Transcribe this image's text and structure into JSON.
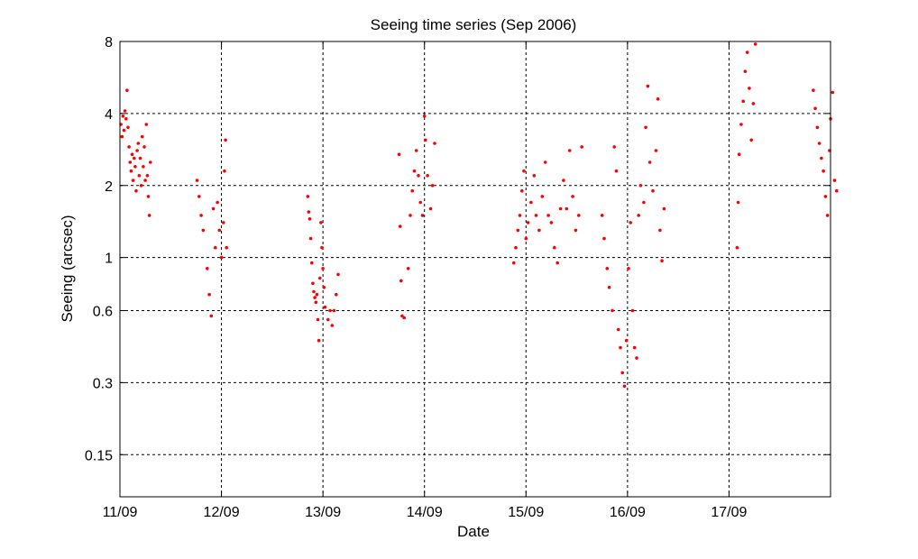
{
  "chart_data": {
    "type": "scatter",
    "title": "Seeing time series (Sep 2006)",
    "xlabel": "Date",
    "ylabel": "Seeing (arcsec)",
    "x_unit": "days in September 2006",
    "x_range": [
      11,
      18
    ],
    "ylim": [
      0.1,
      8
    ],
    "yscale": "log",
    "grid": true,
    "marker_color": "#ff0000",
    "x_ticks": [
      {
        "value": 11,
        "label": "11/09"
      },
      {
        "value": 12,
        "label": "12/09"
      },
      {
        "value": 13,
        "label": "13/09"
      },
      {
        "value": 14,
        "label": "14/09"
      },
      {
        "value": 15,
        "label": "15/09"
      },
      {
        "value": 16,
        "label": "16/09"
      },
      {
        "value": 17,
        "label": "17/09"
      }
    ],
    "y_ticks": [
      {
        "value": 0.15,
        "label": "0.15"
      },
      {
        "value": 0.3,
        "label": "0.3"
      },
      {
        "value": 0.6,
        "label": "0.6"
      },
      {
        "value": 1,
        "label": "1"
      },
      {
        "value": 2,
        "label": "2"
      },
      {
        "value": 4,
        "label": "4"
      },
      {
        "value": 8,
        "label": "8"
      }
    ],
    "series": [
      {
        "values": [
          [
            11.01,
            3.6
          ],
          [
            11.02,
            3.2
          ],
          [
            11.03,
            3.9
          ],
          [
            11.04,
            3.4
          ],
          [
            11.05,
            4.1
          ],
          [
            11.06,
            3.8
          ],
          [
            11.07,
            5.0
          ],
          [
            11.08,
            3.5
          ],
          [
            11.09,
            2.9
          ],
          [
            11.1,
            2.5
          ],
          [
            11.11,
            2.3
          ],
          [
            11.12,
            2.7
          ],
          [
            11.13,
            2.1
          ],
          [
            11.14,
            2.6
          ],
          [
            11.15,
            2.4
          ],
          [
            11.16,
            1.9
          ],
          [
            11.17,
            2.8
          ],
          [
            11.18,
            3.0
          ],
          [
            11.19,
            2.2
          ],
          [
            11.2,
            2.6
          ],
          [
            11.21,
            2.0
          ],
          [
            11.22,
            3.2
          ],
          [
            11.23,
            2.4
          ],
          [
            11.24,
            2.9
          ],
          [
            11.25,
            2.1
          ],
          [
            11.26,
            3.6
          ],
          [
            11.27,
            2.2
          ],
          [
            11.28,
            1.8
          ],
          [
            11.29,
            1.5
          ],
          [
            11.3,
            2.5
          ],
          [
            11.76,
            2.1
          ],
          [
            11.78,
            1.8
          ],
          [
            11.8,
            1.5
          ],
          [
            11.82,
            1.3
          ],
          [
            11.86,
            0.9
          ],
          [
            11.88,
            0.7
          ],
          [
            11.9,
            0.57
          ],
          [
            11.92,
            1.6
          ],
          [
            11.94,
            1.1
          ],
          [
            11.96,
            1.7
          ],
          [
            11.98,
            1.3
          ],
          [
            12.0,
            1.0
          ],
          [
            12.02,
            1.4
          ],
          [
            12.03,
            2.3
          ],
          [
            12.04,
            3.1
          ],
          [
            12.05,
            1.1
          ],
          [
            12.85,
            1.8
          ],
          [
            12.86,
            1.55
          ],
          [
            12.87,
            1.45
          ],
          [
            12.88,
            1.2
          ],
          [
            12.89,
            0.95
          ],
          [
            12.9,
            0.78
          ],
          [
            12.91,
            0.72
          ],
          [
            12.92,
            0.68
          ],
          [
            12.93,
            0.65
          ],
          [
            12.94,
            0.7
          ],
          [
            12.95,
            0.55
          ],
          [
            12.96,
            0.45
          ],
          [
            12.97,
            0.82
          ],
          [
            12.98,
            1.4
          ],
          [
            12.99,
            1.1
          ],
          [
            13.0,
            0.9
          ],
          [
            13.01,
            0.75
          ],
          [
            13.02,
            0.62
          ],
          [
            13.05,
            0.55
          ],
          [
            13.07,
            0.6
          ],
          [
            13.09,
            0.52
          ],
          [
            13.11,
            0.6
          ],
          [
            13.13,
            0.7
          ],
          [
            13.15,
            0.85
          ],
          [
            13.75,
            2.7
          ],
          [
            13.76,
            1.35
          ],
          [
            13.77,
            0.8
          ],
          [
            13.78,
            0.57
          ],
          [
            13.8,
            0.56
          ],
          [
            13.84,
            0.9
          ],
          [
            13.86,
            1.5
          ],
          [
            13.88,
            1.9
          ],
          [
            13.9,
            2.3
          ],
          [
            13.92,
            2.8
          ],
          [
            13.94,
            2.2
          ],
          [
            13.96,
            1.7
          ],
          [
            13.98,
            1.5
          ],
          [
            14.0,
            3.9
          ],
          [
            14.01,
            3.1
          ],
          [
            14.03,
            2.2
          ],
          [
            14.06,
            1.6
          ],
          [
            14.08,
            2.0
          ],
          [
            14.1,
            3.0
          ],
          [
            14.88,
            0.95
          ],
          [
            14.9,
            1.1
          ],
          [
            14.92,
            1.3
          ],
          [
            14.94,
            1.5
          ],
          [
            14.96,
            1.9
          ],
          [
            14.98,
            2.3
          ],
          [
            15.0,
            1.2
          ],
          [
            15.02,
            1.4
          ],
          [
            15.05,
            1.7
          ],
          [
            15.08,
            2.2
          ],
          [
            15.1,
            1.5
          ],
          [
            15.13,
            1.3
          ],
          [
            15.16,
            1.8
          ],
          [
            15.19,
            2.5
          ],
          [
            15.22,
            1.5
          ],
          [
            15.25,
            1.4
          ],
          [
            15.28,
            1.1
          ],
          [
            15.31,
            0.95
          ],
          [
            15.34,
            1.6
          ],
          [
            15.37,
            2.1
          ],
          [
            15.4,
            1.6
          ],
          [
            15.43,
            2.8
          ],
          [
            15.46,
            1.8
          ],
          [
            15.49,
            1.3
          ],
          [
            15.52,
            1.5
          ],
          [
            15.55,
            2.9
          ],
          [
            15.75,
            1.5
          ],
          [
            15.77,
            1.2
          ],
          [
            15.8,
            0.9
          ],
          [
            15.82,
            0.75
          ],
          [
            15.85,
            0.6
          ],
          [
            15.87,
            2.9
          ],
          [
            15.89,
            2.3
          ],
          [
            15.91,
            0.5
          ],
          [
            15.93,
            0.42
          ],
          [
            15.95,
            0.33
          ],
          [
            15.97,
            0.29
          ],
          [
            15.99,
            0.45
          ],
          [
            16.01,
            0.9
          ],
          [
            16.03,
            1.4
          ],
          [
            16.05,
            0.6
          ],
          [
            16.07,
            0.42
          ],
          [
            16.09,
            0.38
          ],
          [
            16.11,
            1.5
          ],
          [
            16.13,
            2.0
          ],
          [
            16.16,
            1.7
          ],
          [
            16.18,
            3.5
          ],
          [
            16.2,
            5.2
          ],
          [
            16.22,
            2.5
          ],
          [
            16.25,
            1.9
          ],
          [
            16.28,
            2.8
          ],
          [
            16.3,
            4.6
          ],
          [
            16.32,
            1.3
          ],
          [
            16.34,
            0.97
          ],
          [
            16.36,
            1.6
          ],
          [
            17.08,
            1.1
          ],
          [
            17.09,
            1.7
          ],
          [
            17.1,
            2.7
          ],
          [
            17.12,
            3.6
          ],
          [
            17.14,
            4.5
          ],
          [
            17.16,
            6.0
          ],
          [
            17.18,
            7.2
          ],
          [
            17.2,
            5.1
          ],
          [
            17.22,
            3.1
          ],
          [
            17.24,
            4.4
          ],
          [
            17.26,
            7.8
          ],
          [
            17.83,
            5.0
          ],
          [
            17.85,
            4.2
          ],
          [
            17.87,
            3.5
          ],
          [
            17.89,
            3.0
          ],
          [
            17.91,
            2.6
          ],
          [
            17.93,
            2.3
          ],
          [
            17.95,
            1.8
          ],
          [
            17.97,
            1.5
          ],
          [
            17.99,
            2.8
          ],
          [
            18.0,
            3.8
          ],
          [
            18.02,
            4.9
          ],
          [
            18.04,
            2.1
          ],
          [
            18.06,
            1.9
          ]
        ]
      }
    ]
  }
}
